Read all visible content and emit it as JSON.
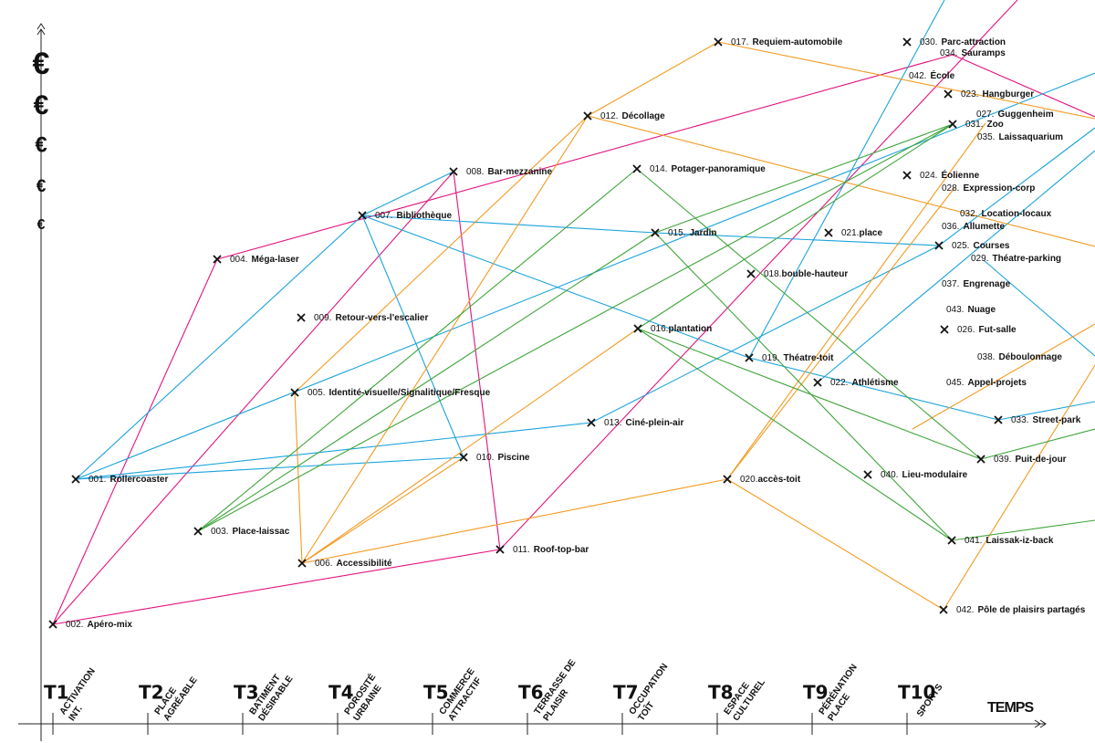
{
  "axis": {
    "y_symbols": [
      "€",
      "€",
      "€",
      "€",
      "€"
    ],
    "time_label": "TEMPS",
    "stages": [
      {
        "code": "T1",
        "name": [
          "ACTIVATION",
          "INT."
        ]
      },
      {
        "code": "T2",
        "name": [
          "PLACE",
          "AGRÉABLE"
        ]
      },
      {
        "code": "T3",
        "name": [
          "BATIMENT",
          "DÉSIRABLE"
        ]
      },
      {
        "code": "T4",
        "name": [
          "POROSITÉ",
          "URBAINE"
        ]
      },
      {
        "code": "T5",
        "name": [
          "COMMERCE",
          "ATTRACTIF"
        ]
      },
      {
        "code": "T6",
        "name": [
          "TERRASSE DE",
          "PLAISIR"
        ]
      },
      {
        "code": "T7",
        "name": [
          "OCCUPATION",
          "TOÎT"
        ]
      },
      {
        "code": "T8",
        "name": [
          "ESPACE",
          "CULTUREL"
        ]
      },
      {
        "code": "T9",
        "name": [
          "PÉRÉNATION",
          "PLACE"
        ]
      },
      {
        "code": "T10",
        "name": [
          "SPORTS"
        ]
      }
    ]
  },
  "nodes": [
    {
      "num": "001.",
      "name": "Rollercoaster"
    },
    {
      "num": "002.",
      "name": "Apéro-mix"
    },
    {
      "num": "003.",
      "name": "Place-laissac"
    },
    {
      "num": "004.",
      "name": "Méga-laser"
    },
    {
      "num": "005.",
      "name": "Identité-visuelle/Signalitique/Fresque"
    },
    {
      "num": "006.",
      "name": "Accessibilité"
    },
    {
      "num": "007.",
      "name": "Bibliothèque"
    },
    {
      "num": "008.",
      "name": "Bar-mezzanine"
    },
    {
      "num": "009.",
      "name": "Retour-vers-l'escalier"
    },
    {
      "num": "010.",
      "name": "Piscine"
    },
    {
      "num": "011.",
      "name": "Roof-top-bar"
    },
    {
      "num": "012.",
      "name": "Décollage"
    },
    {
      "num": "013.",
      "name": "Ciné-plein-air"
    },
    {
      "num": "014.",
      "name": "Potager-panoramique"
    },
    {
      "num": "015.",
      "name": "Jardin"
    },
    {
      "num": "016.",
      "name": "plantation"
    },
    {
      "num": "017.",
      "name": "Requiem-automobile"
    },
    {
      "num": "018.",
      "name": "bouble-hauteur"
    },
    {
      "num": "019.",
      "name": "Théatre-toit"
    },
    {
      "num": "020.",
      "name": "accès-toit"
    },
    {
      "num": "021.",
      "name": "place"
    },
    {
      "num": "022.",
      "name": "Athlétisme"
    },
    {
      "num": "023.",
      "name": "Hangburger"
    },
    {
      "num": "024.",
      "name": "Éolienne"
    },
    {
      "num": "025.",
      "name": "Courses"
    },
    {
      "num": "026.",
      "name": "Fut-salle"
    },
    {
      "num": "027.",
      "name": "Guggenheim"
    },
    {
      "num": "028.",
      "name": "Expression-corp"
    },
    {
      "num": "029.",
      "name": "Théatre-parking"
    },
    {
      "num": "030.",
      "name": "Parc-attraction"
    },
    {
      "num": "031.",
      "name": "Zoo"
    },
    {
      "num": "032.",
      "name": "Location-locaux"
    },
    {
      "num": "033.",
      "name": "Street-park"
    },
    {
      "num": "034.",
      "name": "Sauramps"
    },
    {
      "num": "035.",
      "name": "Laissaquarium"
    },
    {
      "num": "036.",
      "name": "Allumette"
    },
    {
      "num": "037.",
      "name": "Engrenage"
    },
    {
      "num": "038.",
      "name": "Déboulonnage"
    },
    {
      "num": "039.",
      "name": "Puit-de-jour"
    },
    {
      "num": "040.",
      "name": "Lieu-modulaire"
    },
    {
      "num": "041.",
      "name": "Laissak-iz-back"
    },
    {
      "num": "042.",
      "name": "École"
    },
    {
      "num": "042.",
      "name": "Pôle de plaisirs partagés"
    },
    {
      "num": "043.",
      "name": "Nuage"
    },
    {
      "num": "045.",
      "name": "Appel-projets"
    }
  ]
}
